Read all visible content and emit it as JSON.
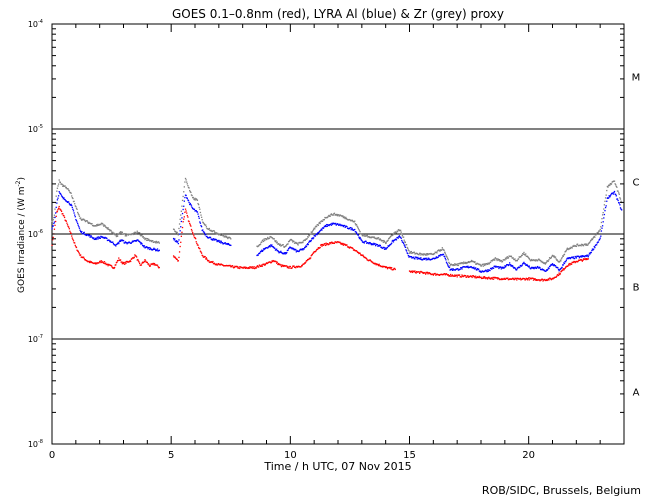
{
  "chart_data": {
    "type": "scatter",
    "title": "GOES 0.1–0.8nm (red), LYRA Al (blue) & Zr (grey) proxy",
    "xlabel": "Time / h UTC, 07 Nov 2015",
    "ylabel_parts": [
      "GOES Irradiance / (W m",
      "-2",
      ")"
    ],
    "credit": "ROB/SIDC, Brussels, Belgium",
    "xlim": [
      0,
      24
    ],
    "ylim_log10": [
      -8,
      -4
    ],
    "y_scale": "log",
    "x_ticks": [
      {
        "v": 0,
        "label": "0"
      },
      {
        "v": 5,
        "label": "5"
      },
      {
        "v": 10,
        "label": "10"
      },
      {
        "v": 15,
        "label": "15"
      },
      {
        "v": 20,
        "label": "20"
      }
    ],
    "y_ticks": [
      {
        "exp": -4,
        "base": "10",
        "sup": "-4"
      },
      {
        "exp": -5,
        "base": "10",
        "sup": "-5"
      },
      {
        "exp": -6,
        "base": "10",
        "sup": "-6"
      },
      {
        "exp": -7,
        "base": "10",
        "sup": "-7"
      },
      {
        "exp": -8,
        "base": "10",
        "sup": "-8"
      }
    ],
    "flare_class_lines": [
      -5,
      -6,
      -7
    ],
    "flare_classes": [
      {
        "label": "M",
        "exp": -4.5
      },
      {
        "label": "C",
        "exp": -5.5
      },
      {
        "label": "B",
        "exp": -6.5
      },
      {
        "label": "A",
        "exp": -7.5
      }
    ],
    "series": [
      {
        "name": "GOES 0.1–0.8nm",
        "color": "#ff0000",
        "points": [
          [
            0.0,
            8e-07
          ],
          [
            0.1,
            1.1e-06
          ],
          [
            0.2,
            1.6e-06
          ],
          [
            0.3,
            1.8e-06
          ],
          [
            0.45,
            1.55e-06
          ],
          [
            0.6,
            1.3e-06
          ],
          [
            0.8,
            1e-06
          ],
          [
            1.0,
            7.5e-07
          ],
          [
            1.2,
            6.2e-07
          ],
          [
            1.5,
            5.5e-07
          ],
          [
            1.8,
            5.2e-07
          ],
          [
            2.1,
            5.5e-07
          ],
          [
            2.4,
            5e-07
          ],
          [
            2.6,
            4.8e-07
          ],
          [
            2.8,
            5.8e-07
          ],
          [
            3.0,
            5.2e-07
          ],
          [
            3.3,
            5.6e-07
          ],
          [
            3.5,
            6.3e-07
          ],
          [
            3.7,
            5e-07
          ],
          [
            3.9,
            5.6e-07
          ],
          [
            4.1,
            5e-07
          ],
          [
            4.3,
            5.2e-07
          ],
          [
            4.5,
            4.8e-07
          ],
          [
            5.1,
            6.2e-07
          ],
          [
            5.3,
            5.5e-07
          ],
          [
            5.5,
            1.3e-06
          ],
          [
            5.6,
            1.7e-06
          ],
          [
            5.75,
            1.3e-06
          ],
          [
            5.9,
            1.05e-06
          ],
          [
            6.1,
            8e-07
          ],
          [
            6.3,
            6.3e-07
          ],
          [
            6.6,
            5.5e-07
          ],
          [
            7.0,
            5.1e-07
          ],
          [
            7.5,
            4.9e-07
          ],
          [
            8.0,
            4.75e-07
          ],
          [
            8.5,
            4.8e-07
          ],
          [
            9.0,
            5.2e-07
          ],
          [
            9.3,
            5.6e-07
          ],
          [
            9.6,
            5e-07
          ],
          [
            10.0,
            4.8e-07
          ],
          [
            10.5,
            5e-07
          ],
          [
            10.8,
            5.8e-07
          ],
          [
            11.0,
            6.8e-07
          ],
          [
            11.3,
            7.8e-07
          ],
          [
            11.7,
            8.2e-07
          ],
          [
            12.0,
            8.3e-07
          ],
          [
            12.4,
            7.7e-07
          ],
          [
            12.8,
            6.8e-07
          ],
          [
            13.2,
            5.8e-07
          ],
          [
            13.6,
            5.2e-07
          ],
          [
            14.0,
            4.8e-07
          ],
          [
            14.4,
            4.6e-07
          ],
          [
            15.0,
            4.4e-07
          ],
          [
            15.5,
            4.3e-07
          ],
          [
            16.0,
            4.15e-07
          ],
          [
            16.5,
            4.1e-07
          ],
          [
            17.0,
            4e-07
          ],
          [
            17.5,
            3.95e-07
          ],
          [
            18.0,
            3.85e-07
          ],
          [
            18.5,
            3.8e-07
          ],
          [
            19.0,
            3.75e-07
          ],
          [
            19.5,
            3.7e-07
          ],
          [
            20.0,
            3.75e-07
          ],
          [
            20.3,
            3.7e-07
          ],
          [
            20.6,
            3.65e-07
          ],
          [
            21.0,
            3.75e-07
          ],
          [
            21.3,
            4.2e-07
          ],
          [
            21.6,
            5e-07
          ],
          [
            22.0,
            5.5e-07
          ],
          [
            22.5,
            5.8e-07
          ]
        ]
      },
      {
        "name": "LYRA Al proxy",
        "color": "#0000ff",
        "points": [
          [
            0.0,
            1.15e-06
          ],
          [
            0.1,
            1.3e-06
          ],
          [
            0.2,
            2e-06
          ],
          [
            0.3,
            2.5e-06
          ],
          [
            0.45,
            2.2e-06
          ],
          [
            0.6,
            2.1e-06
          ],
          [
            0.8,
            1.9e-06
          ],
          [
            1.0,
            1.4e-06
          ],
          [
            1.2,
            1.05e-06
          ],
          [
            1.5,
            9.8e-07
          ],
          [
            1.8,
            9e-07
          ],
          [
            2.1,
            9.4e-07
          ],
          [
            2.4,
            8.7e-07
          ],
          [
            2.7,
            7.8e-07
          ],
          [
            2.9,
            8.8e-07
          ],
          [
            3.1,
            8.2e-07
          ],
          [
            3.4,
            8.4e-07
          ],
          [
            3.6,
            8.7e-07
          ],
          [
            3.9,
            7.5e-07
          ],
          [
            4.2,
            7.2e-07
          ],
          [
            4.5,
            7e-07
          ],
          [
            5.1,
            9e-07
          ],
          [
            5.3,
            8.2e-07
          ],
          [
            5.5,
            1.7e-06
          ],
          [
            5.6,
            2.4e-06
          ],
          [
            5.75,
            2e-06
          ],
          [
            5.9,
            1.75e-06
          ],
          [
            6.1,
            1.6e-06
          ],
          [
            6.3,
            1.1e-06
          ],
          [
            6.5,
            9.5e-07
          ],
          [
            6.8,
            8.8e-07
          ],
          [
            7.2,
            8.2e-07
          ],
          [
            7.5,
            7.8e-07
          ],
          [
            8.6,
            6.3e-07
          ],
          [
            8.9,
            7.2e-07
          ],
          [
            9.2,
            7.8e-07
          ],
          [
            9.5,
            6.8e-07
          ],
          [
            9.8,
            6.5e-07
          ],
          [
            10.0,
            7.5e-07
          ],
          [
            10.3,
            6.8e-07
          ],
          [
            10.6,
            7.3e-07
          ],
          [
            10.9,
            9e-07
          ],
          [
            11.2,
            1.05e-06
          ],
          [
            11.5,
            1.2e-06
          ],
          [
            11.8,
            1.25e-06
          ],
          [
            12.1,
            1.22e-06
          ],
          [
            12.4,
            1.15e-06
          ],
          [
            12.7,
            1.1e-06
          ],
          [
            13.0,
            8.5e-07
          ],
          [
            13.3,
            8.2e-07
          ],
          [
            13.7,
            7.8e-07
          ],
          [
            14.0,
            7.2e-07
          ],
          [
            14.3,
            8.5e-07
          ],
          [
            14.6,
            9.5e-07
          ],
          [
            15.0,
            6e-07
          ],
          [
            15.5,
            5.8e-07
          ],
          [
            16.0,
            5.8e-07
          ],
          [
            16.4,
            6.5e-07
          ],
          [
            16.7,
            4.6e-07
          ],
          [
            17.0,
            4.6e-07
          ],
          [
            17.3,
            4.8e-07
          ],
          [
            17.6,
            4.9e-07
          ],
          [
            18.0,
            4.4e-07
          ],
          [
            18.3,
            4.5e-07
          ],
          [
            18.6,
            4.9e-07
          ],
          [
            18.9,
            4.7e-07
          ],
          [
            19.2,
            5.2e-07
          ],
          [
            19.5,
            4.6e-07
          ],
          [
            19.8,
            5.3e-07
          ],
          [
            20.1,
            4.7e-07
          ],
          [
            20.4,
            4.8e-07
          ],
          [
            20.7,
            4.4e-07
          ],
          [
            21.0,
            5.2e-07
          ],
          [
            21.3,
            4.5e-07
          ],
          [
            21.6,
            5.8e-07
          ],
          [
            22.0,
            6e-07
          ],
          [
            22.5,
            6.2e-07
          ],
          [
            23.0,
            9e-07
          ],
          [
            23.3,
            2.2e-06
          ],
          [
            23.6,
            2.5e-06
          ],
          [
            23.9,
            1.7e-06
          ]
        ]
      },
      {
        "name": "LYRA Zr proxy",
        "color": "#808080",
        "points": [
          [
            0.0,
            1.3e-06
          ],
          [
            0.1,
            1.5e-06
          ],
          [
            0.2,
            2.6e-06
          ],
          [
            0.3,
            3.2e-06
          ],
          [
            0.45,
            2.9e-06
          ],
          [
            0.6,
            2.8e-06
          ],
          [
            0.8,
            2.4e-06
          ],
          [
            1.0,
            1.8e-06
          ],
          [
            1.2,
            1.4e-06
          ],
          [
            1.5,
            1.3e-06
          ],
          [
            1.8,
            1.2e-06
          ],
          [
            2.1,
            1.25e-06
          ],
          [
            2.4,
            1.1e-06
          ],
          [
            2.7,
            9.5e-07
          ],
          [
            2.9,
            1.05e-06
          ],
          [
            3.1,
            9.7e-07
          ],
          [
            3.4,
            1e-06
          ],
          [
            3.6,
            1.05e-06
          ],
          [
            3.9,
            9e-07
          ],
          [
            4.2,
            8.6e-07
          ],
          [
            4.5,
            8.2e-07
          ],
          [
            5.1,
            1.1e-06
          ],
          [
            5.3,
            1e-06
          ],
          [
            5.5,
            2.3e-06
          ],
          [
            5.6,
            3.4e-06
          ],
          [
            5.75,
            2.7e-06
          ],
          [
            5.9,
            2.2e-06
          ],
          [
            6.1,
            2.1e-06
          ],
          [
            6.3,
            1.35e-06
          ],
          [
            6.5,
            1.15e-06
          ],
          [
            6.8,
            1.05e-06
          ],
          [
            7.2,
            9.6e-07
          ],
          [
            7.5,
            9e-07
          ],
          [
            8.6,
            7.6e-07
          ],
          [
            8.9,
            8.8e-07
          ],
          [
            9.2,
            9.5e-07
          ],
          [
            9.5,
            8e-07
          ],
          [
            9.8,
            7.6e-07
          ],
          [
            10.0,
            8.8e-07
          ],
          [
            10.3,
            8e-07
          ],
          [
            10.6,
            8.6e-07
          ],
          [
            10.9,
            1.05e-06
          ],
          [
            11.2,
            1.25e-06
          ],
          [
            11.5,
            1.45e-06
          ],
          [
            11.8,
            1.55e-06
          ],
          [
            12.1,
            1.5e-06
          ],
          [
            12.4,
            1.4e-06
          ],
          [
            12.7,
            1.3e-06
          ],
          [
            13.0,
            9.8e-07
          ],
          [
            13.3,
            9.5e-07
          ],
          [
            13.7,
            9e-07
          ],
          [
            14.0,
            8.3e-07
          ],
          [
            14.3,
            1e-06
          ],
          [
            14.6,
            1.1e-06
          ],
          [
            15.0,
            6.7e-07
          ],
          [
            15.5,
            6.4e-07
          ],
          [
            16.0,
            6.4e-07
          ],
          [
            16.4,
            7.3e-07
          ],
          [
            16.7,
            5.1e-07
          ],
          [
            17.0,
            5.1e-07
          ],
          [
            17.3,
            5.3e-07
          ],
          [
            17.6,
            5.5e-07
          ],
          [
            18.0,
            5e-07
          ],
          [
            18.3,
            5.2e-07
          ],
          [
            18.6,
            5.8e-07
          ],
          [
            18.9,
            5.5e-07
          ],
          [
            19.2,
            6.2e-07
          ],
          [
            19.5,
            5.6e-07
          ],
          [
            19.8,
            6.6e-07
          ],
          [
            20.1,
            5.6e-07
          ],
          [
            20.4,
            5.7e-07
          ],
          [
            20.7,
            5.2e-07
          ],
          [
            21.0,
            6.3e-07
          ],
          [
            21.3,
            5.4e-07
          ],
          [
            21.6,
            7.2e-07
          ],
          [
            22.0,
            7.8e-07
          ],
          [
            22.5,
            8e-07
          ],
          [
            23.0,
            1.1e-06
          ],
          [
            23.3,
            2.8e-06
          ],
          [
            23.6,
            3.2e-06
          ],
          [
            23.9,
            2e-06
          ]
        ]
      }
    ]
  }
}
